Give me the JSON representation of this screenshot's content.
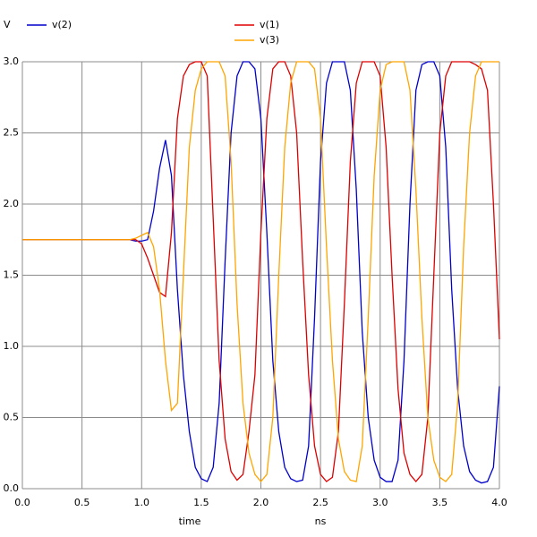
{
  "chart_data": {
    "type": "line",
    "y_label": "V",
    "x_label": "time",
    "x_unit": "ns",
    "x": [
      0,
      0.9,
      0.95,
      1,
      1.05,
      1.1,
      1.15,
      1.2,
      1.25,
      1.3,
      1.35,
      1.4,
      1.45,
      1.5,
      1.55,
      1.6,
      1.65,
      1.7,
      1.75,
      1.8,
      1.85,
      1.9,
      1.95,
      2,
      2.05,
      2.1,
      2.15,
      2.2,
      2.25,
      2.3,
      2.35,
      2.4,
      2.45,
      2.5,
      2.55,
      2.6,
      2.65,
      2.7,
      2.75,
      2.8,
      2.85,
      2.9,
      2.95,
      3,
      3.05,
      3.1,
      3.15,
      3.2,
      3.25,
      3.3,
      3.35,
      3.4,
      3.45,
      3.5,
      3.55,
      3.6,
      3.65,
      3.7,
      3.75,
      3.8,
      3.85,
      3.9,
      3.95,
      4
    ],
    "series": [
      {
        "name": "v(2)",
        "color": "#0000cc",
        "values": [
          1.75,
          1.75,
          1.74,
          1.74,
          1.75,
          1.95,
          2.25,
          2.45,
          2.2,
          1.4,
          0.8,
          0.4,
          0.15,
          0.07,
          0.05,
          0.15,
          0.6,
          1.6,
          2.5,
          2.9,
          3,
          3,
          2.95,
          2.6,
          1.8,
          0.9,
          0.4,
          0.15,
          0.07,
          0.05,
          0.06,
          0.3,
          1.2,
          2.3,
          2.85,
          3,
          3,
          3,
          2.8,
          2.1,
          1.1,
          0.5,
          0.2,
          0.08,
          0.05,
          0.05,
          0.2,
          0.9,
          2,
          2.8,
          2.98,
          3,
          3,
          2.9,
          2.4,
          1.4,
          0.7,
          0.3,
          0.12,
          0.06,
          0.04,
          0.05,
          0.15,
          0.72
        ]
      },
      {
        "name": "v(1)",
        "color": "#dd0000",
        "values": [
          1.75,
          1.75,
          1.75,
          1.72,
          1.62,
          1.5,
          1.38,
          1.35,
          1.8,
          2.6,
          2.9,
          2.98,
          3,
          3,
          2.9,
          1.9,
          0.9,
          0.35,
          0.12,
          0.06,
          0.1,
          0.4,
          0.8,
          1.8,
          2.6,
          2.95,
          3,
          3,
          2.9,
          2.5,
          1.6,
          0.8,
          0.3,
          0.1,
          0.05,
          0.08,
          0.4,
          1.3,
          2.3,
          2.85,
          3,
          3,
          3,
          2.9,
          2.4,
          1.5,
          0.7,
          0.25,
          0.1,
          0.05,
          0.1,
          0.5,
          1.5,
          2.5,
          2.9,
          3,
          3,
          3,
          3,
          2.98,
          2.95,
          2.8,
          2,
          1.05
        ]
      },
      {
        "name": "v(3)",
        "color": "#ffa500",
        "values": [
          1.75,
          1.75,
          1.76,
          1.78,
          1.8,
          1.7,
          1.4,
          0.9,
          0.55,
          0.6,
          1.5,
          2.4,
          2.8,
          2.95,
          3,
          3,
          3,
          2.9,
          2.3,
          1.3,
          0.6,
          0.25,
          0.1,
          0.05,
          0.1,
          0.5,
          1.5,
          2.4,
          2.85,
          3,
          3,
          3,
          2.95,
          2.6,
          1.7,
          0.9,
          0.35,
          0.12,
          0.06,
          0.05,
          0.3,
          1.2,
          2.2,
          2.8,
          2.98,
          3,
          3,
          3,
          2.8,
          2.1,
          1.2,
          0.5,
          0.2,
          0.08,
          0.05,
          0.1,
          0.6,
          1.7,
          2.5,
          2.9,
          3,
          3,
          3,
          3
        ]
      }
    ],
    "xlim": [
      0,
      4
    ],
    "xticks": [
      {
        "value": 0,
        "label": "0.0"
      },
      0.5,
      {
        "value": 1,
        "label": "1.0"
      },
      1.5,
      {
        "value": 2,
        "label": "2.0"
      },
      2.5,
      {
        "value": 3,
        "label": "3.0"
      },
      3.5,
      {
        "value": 4,
        "label": "4.0"
      }
    ],
    "ylim": [
      0,
      3
    ],
    "yticks": [
      {
        "value": 0,
        "label": "0.0"
      },
      0.5,
      {
        "value": 1,
        "label": "1.0"
      },
      1.5,
      {
        "value": 2,
        "label": "2.0"
      },
      2.5,
      {
        "value": 3,
        "label": "3.0"
      }
    ],
    "grid": true
  }
}
